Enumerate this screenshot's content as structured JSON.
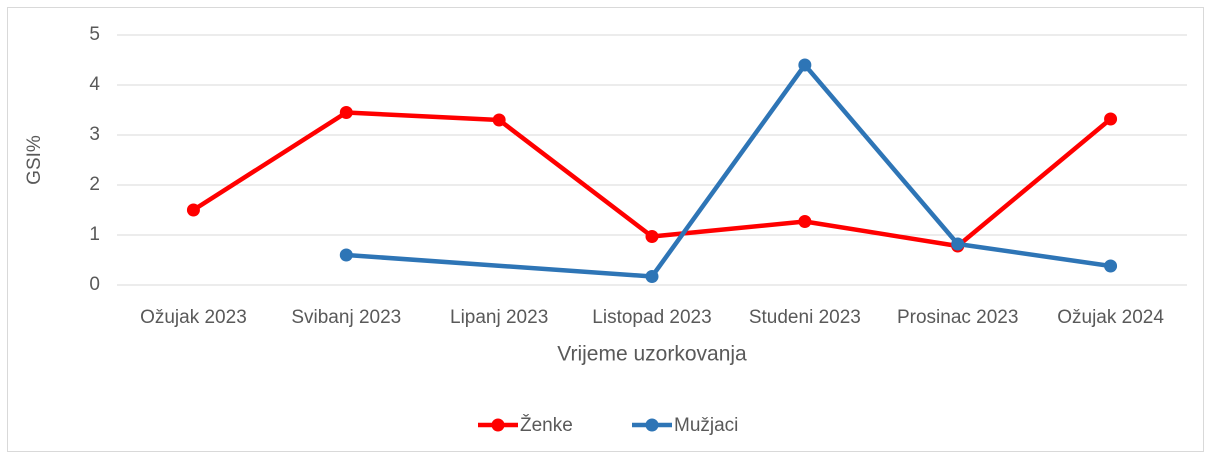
{
  "chart_data": {
    "type": "line",
    "y_label": "GSI%",
    "x_label": "Vrijeme uzorkovanja",
    "categories": [
      "Ožujak 2023",
      "Svibanj 2023",
      "Lipanj 2023",
      "Listopad 2023",
      "Studeni 2023",
      "Prosinac 2023",
      "Ožujak 2024"
    ],
    "series": [
      {
        "name": "Ženke",
        "color": "#ff0000",
        "values": [
          1.5,
          3.45,
          3.3,
          0.97,
          1.27,
          0.78,
          3.32
        ]
      },
      {
        "name": "Mužjaci",
        "color": "#2e75b6",
        "values": [
          null,
          0.6,
          null,
          0.17,
          4.4,
          0.82,
          0.38
        ]
      }
    ],
    "connect_gaps": true,
    "ylim": [
      0,
      5
    ],
    "yticks": [
      0,
      1,
      2,
      3,
      4,
      5
    ],
    "grid": true,
    "legend": "bottom"
  }
}
